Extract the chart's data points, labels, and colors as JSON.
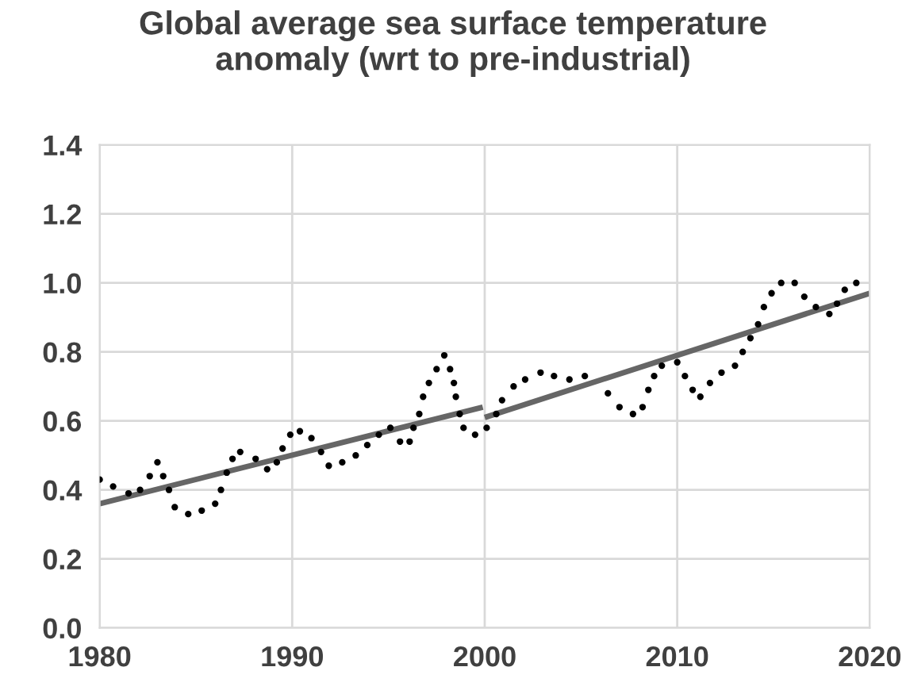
{
  "chart_data": {
    "type": "scatter",
    "title": "Global average sea surface temperature\nanomaly (wrt to pre-industrial)",
    "xlim": [
      1980,
      2020
    ],
    "xticks": [
      1980,
      1990,
      2000,
      2010,
      2020
    ],
    "ylim": [
      0,
      1.4
    ],
    "yticks": [
      {
        "value": 0,
        "label": "0.0"
      },
      0.2,
      0.4,
      0.6,
      0.8,
      {
        "value": 1,
        "label": "1.0"
      },
      1.2,
      1.4
    ],
    "grid": true,
    "series": [
      {
        "marker": "circle",
        "color": "#000000",
        "x": [
          1980.0,
          1980.7,
          1981.5,
          1982.1,
          1982.6,
          1983.0,
          1983.3,
          1983.6,
          1983.9,
          1984.6,
          1985.3,
          1986.0,
          1986.3,
          1986.6,
          1986.9,
          1987.3,
          1988.1,
          1988.7,
          1989.2,
          1989.5,
          1989.9,
          1990.4,
          1991.0,
          1991.5,
          1991.9,
          1992.6,
          1993.3,
          1993.9,
          1994.5,
          1995.1,
          1995.6,
          1996.1,
          1996.3,
          1996.6,
          1996.8,
          1997.1,
          1997.5,
          1997.9,
          1998.2,
          1998.4,
          1998.5,
          1998.7,
          1998.9,
          1999.5,
          2000.1,
          2000.6,
          2000.9,
          2001.5,
          2002.1,
          2002.9,
          2003.6,
          2004.4,
          2005.2,
          2006.4,
          2007.0,
          2007.7,
          2008.2,
          2008.5,
          2008.8,
          2009.2,
          2010.0,
          2010.4,
          2010.8,
          2011.2,
          2011.7,
          2012.3,
          2013.0,
          2013.4,
          2013.8,
          2014.2,
          2014.5,
          2014.9,
          2015.4,
          2016.1,
          2016.6,
          2017.2,
          2017.9,
          2018.3,
          2018.7,
          2019.3
        ],
        "values": [
          0.43,
          0.41,
          0.39,
          0.4,
          0.44,
          0.48,
          0.44,
          0.4,
          0.35,
          0.33,
          0.34,
          0.36,
          0.4,
          0.45,
          0.49,
          0.51,
          0.49,
          0.46,
          0.48,
          0.52,
          0.56,
          0.57,
          0.55,
          0.51,
          0.47,
          0.48,
          0.5,
          0.53,
          0.56,
          0.58,
          0.54,
          0.54,
          0.58,
          0.62,
          0.67,
          0.71,
          0.75,
          0.79,
          0.75,
          0.71,
          0.67,
          0.62,
          0.58,
          0.56,
          0.58,
          0.62,
          0.66,
          0.7,
          0.72,
          0.74,
          0.73,
          0.72,
          0.73,
          0.68,
          0.64,
          0.62,
          0.64,
          0.69,
          0.73,
          0.76,
          0.77,
          0.73,
          0.69,
          0.67,
          0.71,
          0.74,
          0.76,
          0.8,
          0.84,
          0.88,
          0.93,
          0.97,
          1.0,
          1.0,
          0.96,
          0.93,
          0.91,
          0.94,
          0.98,
          1.0
        ]
      },
      {
        "type": "line",
        "marker": "none",
        "color": "#666666",
        "x": [
          1980,
          1999.9
        ],
        "values": [
          0.36,
          0.64
        ]
      },
      {
        "type": "line",
        "marker": "none",
        "color": "#666666",
        "x": [
          2000,
          2020
        ],
        "values": [
          0.61,
          0.97
        ]
      }
    ]
  }
}
